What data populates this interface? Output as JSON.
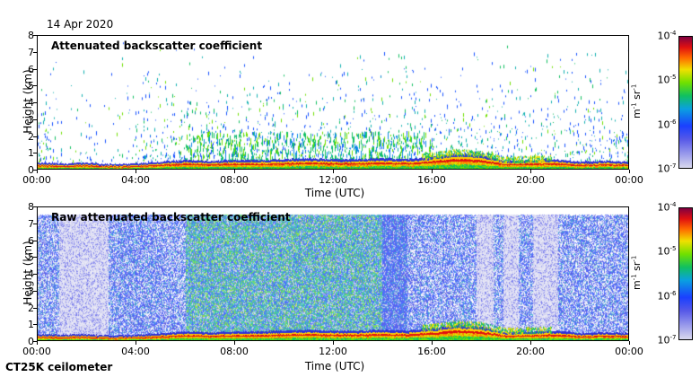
{
  "header": {
    "date": "14 Apr 2020"
  },
  "footer": {
    "instrument": "CT25K ceilometer"
  },
  "colors": {
    "low": "#d8d8ee",
    "mid": "#10c060",
    "high": "#800040"
  },
  "chart_data": [
    {
      "type": "heatmap",
      "title": "Attenuated backscatter coefficient",
      "xlabel": "Time (UTC)",
      "ylabel": "Height (km)",
      "x_ticks": [
        "00:00",
        "04:00",
        "08:00",
        "12:00",
        "16:00",
        "20:00",
        "00:00"
      ],
      "y_ticks": [
        "0",
        "1",
        "2",
        "3",
        "4",
        "5",
        "6",
        "7",
        "8"
      ],
      "ylim": [
        0,
        8
      ],
      "xlim_hours": [
        0,
        24
      ],
      "colorbar": {
        "min_label": "10",
        "min_exp": "-7",
        "labels": [
          [
            "10",
            "-6"
          ],
          [
            "10",
            "-5"
          ],
          [
            "10",
            "-4"
          ]
        ],
        "unit": "m",
        "unit_exp1": "-1",
        "unit_mid": " sr",
        "unit_exp2": "-1"
      },
      "layer_top_km": [
        0.35,
        0.3,
        0.35,
        0.25,
        0.3,
        0.4,
        0.5,
        0.45,
        0.5,
        0.5,
        0.55,
        0.6,
        0.55,
        0.55,
        0.6,
        0.55,
        0.7,
        0.9,
        0.8,
        0.45,
        0.5,
        0.55,
        0.4,
        0.45,
        0.4
      ]
    },
    {
      "type": "heatmap",
      "title": "Raw attenuated backscatter coefficient",
      "xlabel": "Time (UTC)",
      "ylabel": "Height (km)",
      "x_ticks": [
        "00:00",
        "04:00",
        "08:00",
        "12:00",
        "16:00",
        "20:00",
        "00:00"
      ],
      "y_ticks": [
        "0",
        "1",
        "2",
        "3",
        "4",
        "5",
        "6",
        "7",
        "8"
      ],
      "ylim": [
        0,
        8
      ],
      "xlim_hours": [
        0,
        24
      ],
      "colorbar": {
        "min_label": "10",
        "min_exp": "-7",
        "labels": [
          [
            "10",
            "-6"
          ],
          [
            "10",
            "-5"
          ],
          [
            "10",
            "-4"
          ]
        ],
        "unit": "m",
        "unit_exp1": "-1",
        "unit_mid": " sr",
        "unit_exp2": "-1"
      }
    }
  ]
}
